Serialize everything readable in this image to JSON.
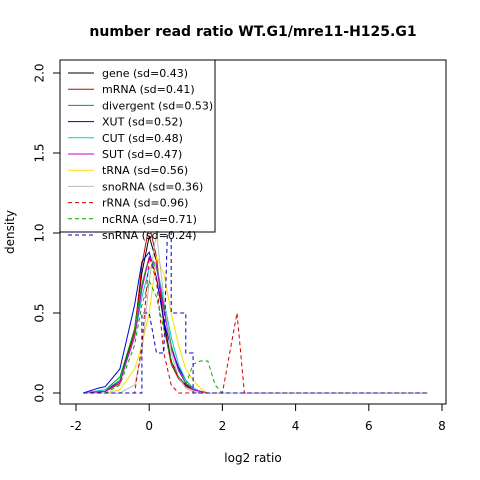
{
  "chart_data": {
    "type": "line",
    "title": "number read ratio WT.G1/mre11-H125.G1",
    "xlabel": "log2 ratio",
    "ylabel": "density",
    "xlim": [
      -2,
      8
    ],
    "ylim": [
      0,
      2
    ],
    "xticks": [
      "-2",
      "0",
      "2",
      "4",
      "6",
      "8"
    ],
    "yticks": [
      "0.0",
      "0.5",
      "1.0",
      "1.5",
      "2.0"
    ],
    "legend_position": "top-left",
    "series": [
      {
        "name": "gene (sd=0.43)",
        "color": "#000000",
        "dash": "solid",
        "x": [
          -1.8,
          -1.2,
          -0.8,
          -0.4,
          -0.2,
          0,
          0.2,
          0.4,
          0.6,
          0.8,
          1.0,
          1.2,
          1.4,
          1.6,
          2.0,
          3.0,
          4.0,
          6.0,
          7.6
        ],
        "y": [
          0,
          0.01,
          0.08,
          0.4,
          0.75,
          0.98,
          0.82,
          0.45,
          0.2,
          0.1,
          0.05,
          0.02,
          0.01,
          0,
          0,
          0,
          0,
          0,
          0
        ]
      },
      {
        "name": "mRNA (sd=0.41)",
        "color": "#cc0000",
        "dash": "solid",
        "x": [
          -1.8,
          -1.2,
          -0.8,
          -0.4,
          -0.2,
          0,
          0.2,
          0.4,
          0.6,
          0.8,
          1.0,
          1.2,
          1.4,
          1.6,
          2.0,
          3.0,
          4.0,
          6.0,
          7.6
        ],
        "y": [
          0,
          0.01,
          0.06,
          0.38,
          0.8,
          1.05,
          0.85,
          0.42,
          0.18,
          0.09,
          0.04,
          0.02,
          0.01,
          0,
          0,
          0,
          0,
          0,
          0
        ]
      },
      {
        "name": "divergent (sd=0.53)",
        "color": "#00aa00",
        "dash": "solid",
        "x": [
          -1.8,
          -1.2,
          -0.8,
          -0.4,
          -0.2,
          0,
          0.2,
          0.4,
          0.6,
          0.8,
          1.0,
          1.2,
          1.4,
          1.6,
          2.0,
          3.0,
          4.0,
          6.0,
          7.6
        ],
        "y": [
          0,
          0.02,
          0.1,
          0.4,
          0.68,
          0.85,
          0.78,
          0.55,
          0.3,
          0.15,
          0.06,
          0.03,
          0.01,
          0,
          0,
          0,
          0,
          0,
          0
        ]
      },
      {
        "name": "XUT (sd=0.52)",
        "color": "#0000cc",
        "dash": "solid",
        "x": [
          -1.8,
          -1.4,
          -1.2,
          -0.8,
          -0.4,
          -0.2,
          0,
          0.2,
          0.4,
          0.6,
          0.8,
          1.0,
          1.2,
          1.4,
          1.6,
          2.0,
          3.0,
          4.0,
          6.0,
          7.6
        ],
        "y": [
          0,
          0.03,
          0.04,
          0.15,
          0.55,
          0.82,
          0.88,
          0.72,
          0.45,
          0.28,
          0.16,
          0.08,
          0.03,
          0.01,
          0,
          0,
          0,
          0,
          0,
          0
        ]
      },
      {
        "name": "CUT (sd=0.48)",
        "color": "#00cccc",
        "dash": "solid",
        "x": [
          -1.8,
          -1.2,
          -0.8,
          -0.4,
          -0.2,
          0,
          0.2,
          0.4,
          0.6,
          0.8,
          1.0,
          1.2,
          1.4,
          1.6,
          2.0,
          3.0,
          4.0,
          6.0,
          7.6
        ],
        "y": [
          0,
          0.02,
          0.08,
          0.35,
          0.6,
          0.78,
          0.8,
          0.58,
          0.35,
          0.18,
          0.08,
          0.03,
          0.01,
          0,
          0,
          0,
          0,
          0,
          0
        ]
      },
      {
        "name": "SUT (sd=0.47)",
        "color": "#cc00cc",
        "dash": "solid",
        "x": [
          -1.8,
          -1.2,
          -0.8,
          -0.4,
          -0.2,
          0,
          0.2,
          0.4,
          0.6,
          0.8,
          1.0,
          1.2,
          1.4,
          1.6,
          2.0,
          3.0,
          4.0,
          6.0,
          7.6
        ],
        "y": [
          0,
          0.01,
          0.07,
          0.35,
          0.65,
          0.85,
          0.8,
          0.52,
          0.28,
          0.14,
          0.06,
          0.02,
          0.01,
          0,
          0,
          0,
          0,
          0,
          0
        ]
      },
      {
        "name": "tRNA (sd=0.56)",
        "color": "#ffdd00",
        "dash": "solid",
        "x": [
          -1.8,
          -1.2,
          -0.8,
          -0.4,
          -0.2,
          0,
          0.2,
          0.4,
          0.6,
          0.8,
          1.0,
          1.2,
          1.4,
          1.6,
          2.0,
          3.0,
          4.0,
          6.0,
          7.6
        ],
        "y": [
          0,
          0,
          0.02,
          0.15,
          0.3,
          0.5,
          0.85,
          0.75,
          0.5,
          0.3,
          0.15,
          0.08,
          0.03,
          0,
          0,
          0,
          0,
          0,
          0
        ]
      },
      {
        "name": "snoRNA (sd=0.36)",
        "color": "#bbbbbb",
        "dash": "solid",
        "x": [
          -1.8,
          -1.2,
          -0.8,
          -0.4,
          -0.2,
          0,
          0.2,
          0.4,
          0.6,
          0.8,
          1.0,
          1.2,
          1.4,
          1.6,
          2.0,
          3.0,
          4.0,
          6.0,
          7.6
        ],
        "y": [
          0,
          0,
          0,
          0.05,
          0.25,
          0.7,
          1.0,
          0.6,
          0.25,
          0.1,
          0.03,
          0.01,
          0,
          0,
          0,
          0,
          0,
          0,
          0
        ]
      },
      {
        "name": "rRNA (sd=0.96)",
        "color": "#cc0000",
        "dash": "dashed",
        "x": [
          -1.8,
          -1.0,
          -0.4,
          -0.2,
          0,
          0.2,
          0.4,
          0.6,
          0.8,
          1.0,
          1.2,
          1.4,
          1.6,
          1.8,
          2.0,
          2.2,
          2.4,
          2.6,
          3.0,
          4.0,
          6.0,
          7.6
        ],
        "y": [
          0,
          0,
          0,
          0.3,
          0.85,
          0.7,
          0.25,
          0.05,
          0,
          0,
          0,
          0,
          0,
          0,
          0,
          0.25,
          0.5,
          0,
          0,
          0,
          0,
          0
        ]
      },
      {
        "name": "ncRNA (sd=0.71)",
        "color": "#00aa00",
        "dash": "dashed",
        "x": [
          -1.8,
          -1.2,
          -0.8,
          -0.4,
          -0.2,
          0,
          0.2,
          0.4,
          0.6,
          0.8,
          1.0,
          1.2,
          1.4,
          1.6,
          1.8,
          2.0,
          3.0,
          4.0,
          6.0,
          7.6
        ],
        "y": [
          0,
          0,
          0.05,
          0.3,
          0.55,
          0.7,
          0.6,
          0.4,
          0.2,
          0.1,
          0.05,
          0.18,
          0.2,
          0.2,
          0.05,
          0,
          0,
          0,
          0,
          0
        ]
      },
      {
        "name": "snRNA (sd=0.24)",
        "color": "#0000cc",
        "dash": "dashed",
        "x": [
          -1.8,
          -0.2,
          -0.2,
          0,
          0.2,
          0.4,
          0.5,
          0.6,
          0.6,
          0.8,
          0.8,
          1.0,
          1.0,
          1.2,
          1.2,
          2.0,
          3.0,
          4.0,
          6.0,
          7.6
        ],
        "y": [
          0,
          0,
          0.5,
          0.5,
          0.25,
          0.25,
          1.02,
          1.02,
          0.5,
          0.5,
          0.5,
          0.5,
          0.25,
          0.25,
          0,
          0,
          0,
          0,
          0,
          0
        ]
      }
    ]
  }
}
